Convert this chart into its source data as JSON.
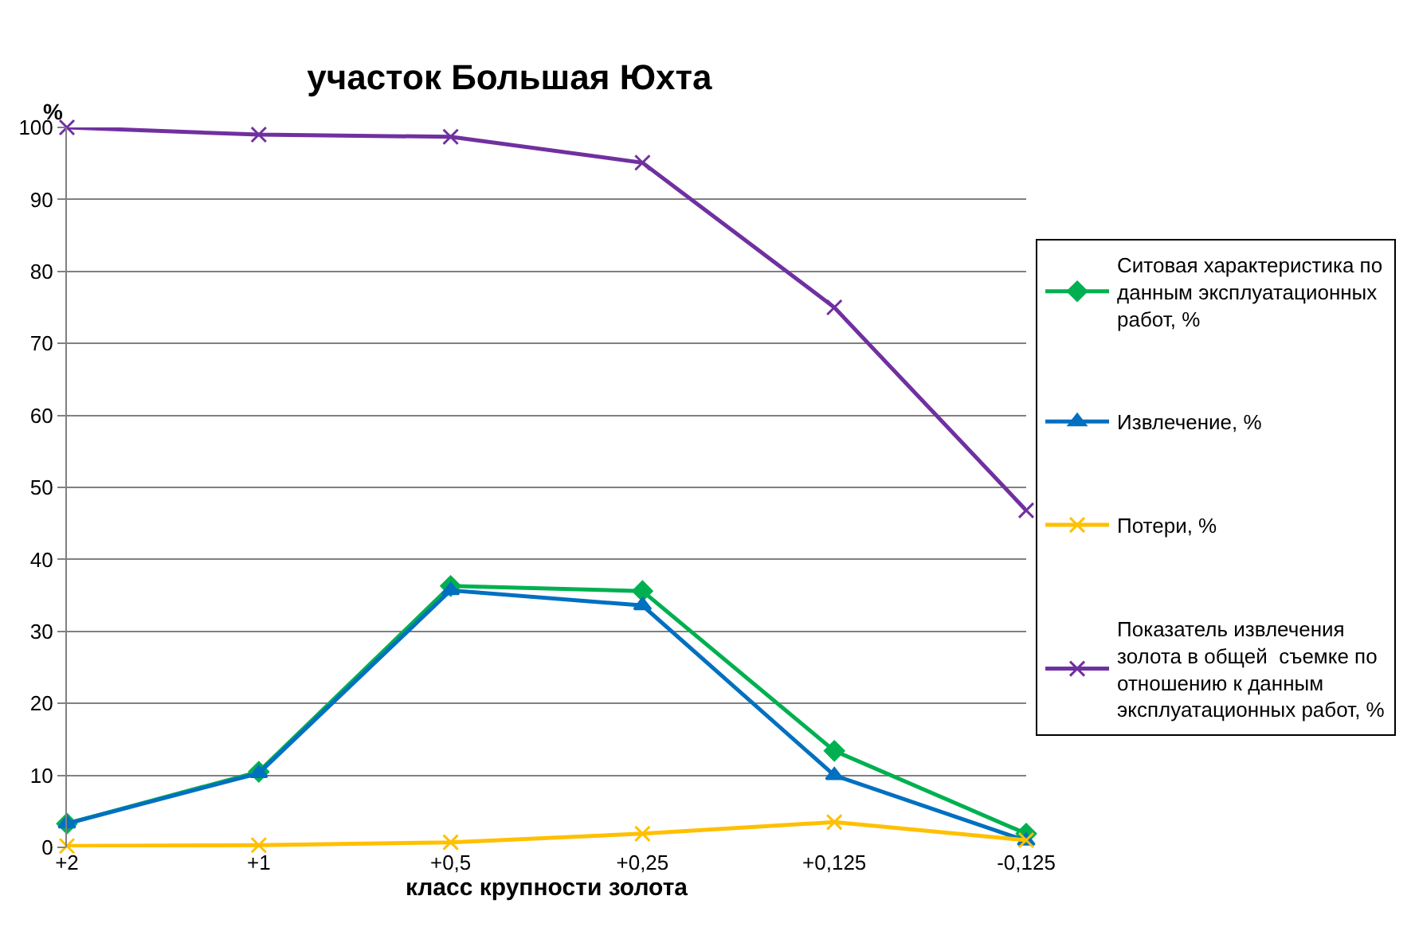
{
  "chart_data": {
    "type": "line",
    "title": "участок Большая Юхта",
    "xlabel": "класс крупности золота",
    "ylabel": "%",
    "categories": [
      "+2",
      "+1",
      "+0,5",
      "+0,25",
      "+0,125",
      "-0,125"
    ],
    "series": [
      {
        "name": "Ситовая характеристика по данным эксплуатационных работ, %",
        "color": "#00b050",
        "marker": "diamond",
        "values": [
          3.3,
          10.5,
          36.3,
          35.6,
          13.4,
          1.9
        ]
      },
      {
        "name": "Извлечение, %",
        "color": "#0070c0",
        "marker": "triangle",
        "values": [
          3.3,
          10.3,
          35.7,
          33.6,
          10.0,
          0.9
        ]
      },
      {
        "name": "Потери, %",
        "color": "#ffc000",
        "marker": "cross",
        "values": [
          0.2,
          0.3,
          0.7,
          1.9,
          3.5,
          1.0
        ]
      },
      {
        "name": "Показатель извлечения золота в общей  съемке по отношению к данным эксплуатационных работ, %",
        "color": "#7030a0",
        "marker": "cross",
        "values": [
          100,
          99,
          98.7,
          95.1,
          75,
          46.8
        ]
      }
    ],
    "ylim": [
      0,
      100
    ],
    "yticks": [
      0,
      10,
      20,
      30,
      40,
      50,
      60,
      70,
      80,
      90,
      100
    ],
    "grid": "y",
    "legend": "right"
  }
}
